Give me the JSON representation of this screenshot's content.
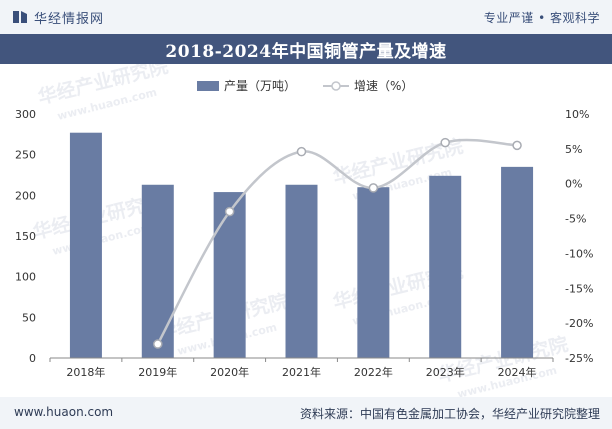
{
  "brand": {
    "name": "华经情报网",
    "tagline": "专业严谨 • 客观科学"
  },
  "title": "2018-2024年中国铜管产量及增速",
  "footer": {
    "site": "www.huaon.com",
    "source": "资料来源：中国有色金属加工协会，华经产业研究院整理"
  },
  "watermark": {
    "cn": "华经产业研究院",
    "en": "www.huaon.com"
  },
  "colors": {
    "bar": "#697ca3",
    "line": "#c3c6cc",
    "header": "#42557d",
    "topbar": "#f1f4f8"
  },
  "chart_data": {
    "type": "bar",
    "categories": [
      "2018年",
      "2019年",
      "2020年",
      "2021年",
      "2022年",
      "2023年",
      "2024年"
    ],
    "series": [
      {
        "name": "产量（万吨）",
        "type": "bar",
        "axis": "left",
        "values": [
          277,
          213,
          204,
          213,
          210,
          224,
          235
        ]
      },
      {
        "name": "增速（%）",
        "type": "line",
        "axis": "right",
        "values": [
          null,
          -23,
          -4,
          4.6,
          -0.6,
          5.9,
          5.5
        ]
      }
    ],
    "y_left": {
      "lim": [
        0,
        300
      ],
      "ticks": [
        0,
        50,
        100,
        150,
        200,
        250,
        300
      ]
    },
    "y_right": {
      "lim": [
        -25,
        10
      ],
      "ticks": [
        -25,
        -20,
        -15,
        -10,
        -5,
        0,
        5,
        10
      ]
    },
    "legend_position": "top-center",
    "grid": false
  }
}
